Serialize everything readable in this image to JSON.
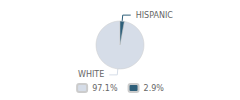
{
  "chart_data": {
    "type": "pie",
    "categories": [
      "WHITE",
      "HISPANIC"
    ],
    "values": [
      97.1,
      2.9
    ],
    "value_labels": [
      "97.1%",
      "2.9%"
    ],
    "colors": [
      "#d6dde8",
      "#2e5f7a"
    ],
    "legend": "bottom"
  }
}
